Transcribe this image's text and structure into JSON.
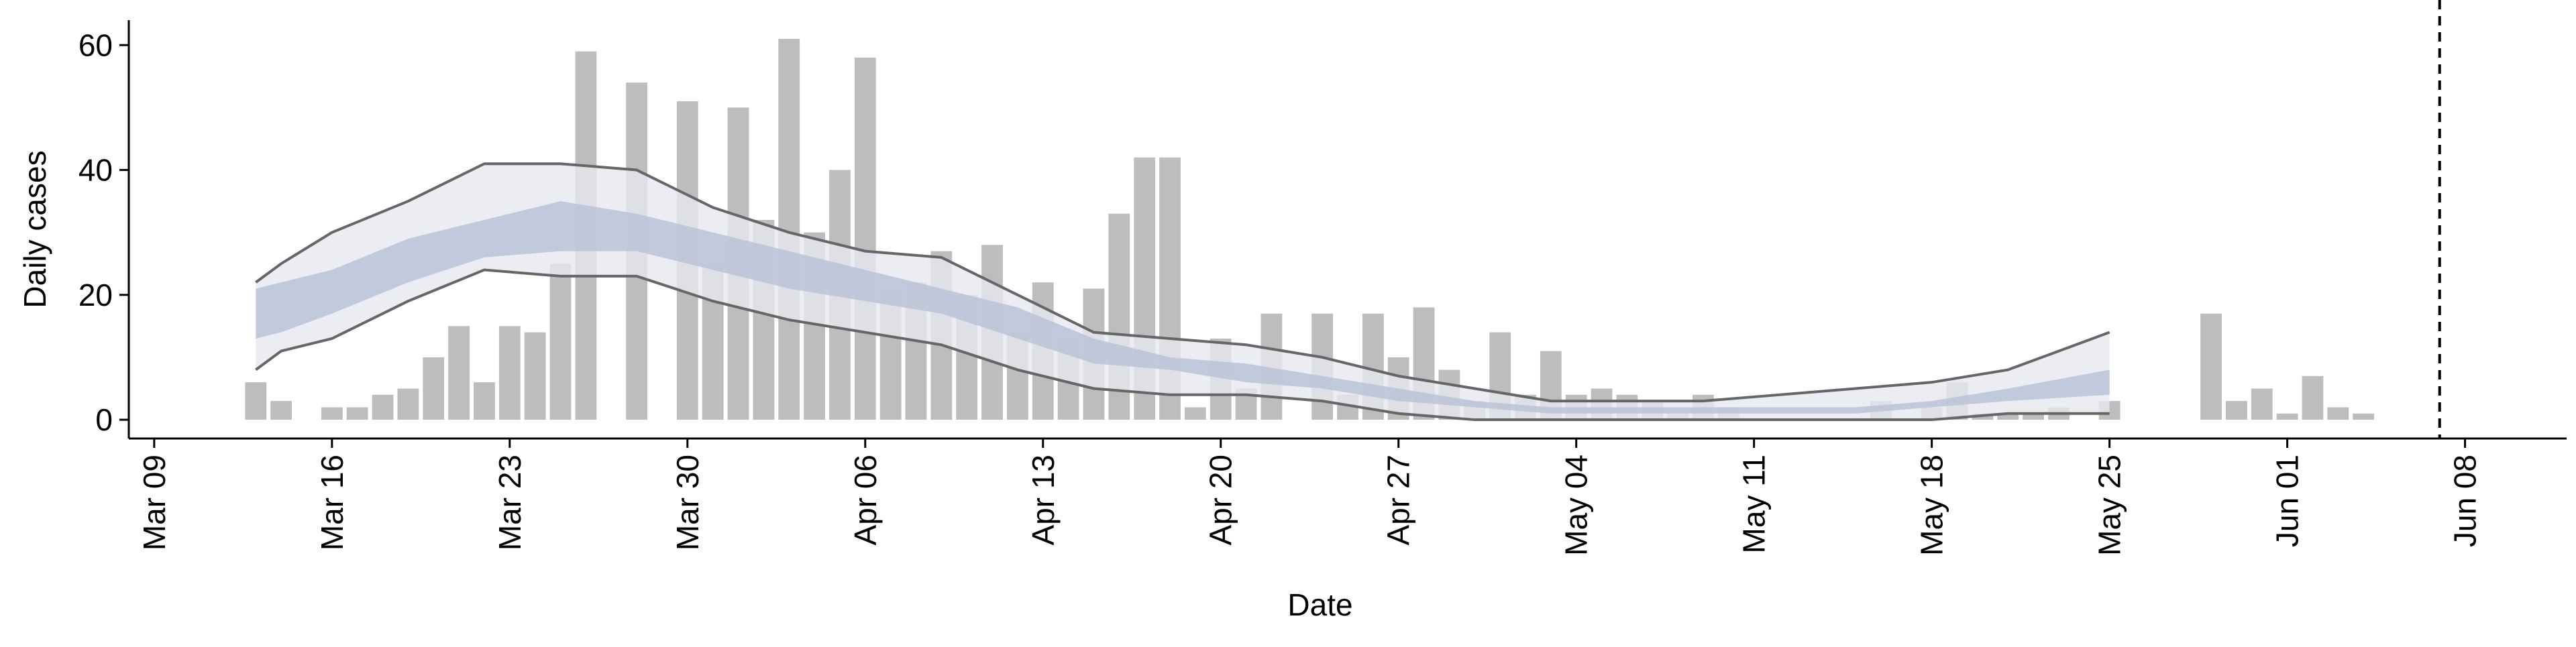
{
  "chart_data": {
    "type": "bar",
    "xlabel": "Date",
    "ylabel": "Daily cases",
    "color": "#bdbdbd",
    "x": [
      "Mar 13",
      "Mar 14",
      "Mar 16",
      "Mar 17",
      "Mar 18",
      "Mar 19",
      "Mar 20",
      "Mar 21",
      "Mar 22",
      "Mar 23",
      "Mar 24",
      "Mar 25",
      "Mar 26",
      "Mar 28",
      "Mar 30",
      "Mar 31",
      "Apr 01",
      "Apr 02",
      "Apr 03",
      "Apr 04",
      "Apr 05",
      "Apr 06",
      "Apr 07",
      "Apr 08",
      "Apr 09",
      "Apr 10",
      "Apr 11",
      "Apr 12",
      "Apr 13",
      "Apr 14",
      "Apr 15",
      "Apr 16",
      "Apr 17",
      "Apr 18",
      "Apr 19",
      "Apr 20",
      "Apr 21",
      "Apr 22",
      "Apr 24",
      "Apr 25",
      "Apr 26",
      "Apr 27",
      "Apr 28",
      "Apr 29",
      "Apr 30",
      "May 01",
      "May 02",
      "May 03",
      "May 04",
      "May 05",
      "May 06",
      "May 07",
      "May 08",
      "May 09",
      "May 10",
      "May 16",
      "May 18",
      "May 19",
      "May 20",
      "May 21",
      "May 22",
      "May 23",
      "May 25",
      "May 29",
      "May 30",
      "May 31",
      "Jun 01",
      "Jun 02",
      "Jun 03",
      "Jun 04"
    ],
    "values": [
      6,
      3,
      2,
      2,
      4,
      5,
      10,
      15,
      6,
      15,
      14,
      25,
      59,
      54,
      51,
      25,
      50,
      32,
      61,
      30,
      40,
      58,
      21,
      22,
      27,
      20,
      28,
      14,
      22,
      13,
      21,
      33,
      42,
      42,
      2,
      13,
      5,
      17,
      17,
      4,
      17,
      10,
      18,
      8,
      3,
      14,
      4,
      11,
      4,
      5,
      4,
      3,
      1,
      4,
      2,
      3,
      2,
      6,
      1,
      1,
      1,
      2,
      3,
      17,
      3,
      5,
      1,
      7,
      2,
      1
    ],
    "model": {
      "x": [
        "Mar 13",
        "Mar 14",
        "Mar 16",
        "Mar 19",
        "Mar 22",
        "Mar 25",
        "Mar 28",
        "Mar 31",
        "Apr 03",
        "Apr 06",
        "Apr 09",
        "Apr 12",
        "Apr 15",
        "Apr 18",
        "Apr 21",
        "Apr 24",
        "Apr 27",
        "Apr 30",
        "May 03",
        "May 06",
        "May 09",
        "May 12",
        "May 15",
        "May 18",
        "May 21",
        "May 25"
      ],
      "outer_upper": [
        22,
        25,
        30,
        35,
        41,
        41,
        40,
        34,
        30,
        27,
        26,
        20,
        14,
        13,
        12,
        10,
        7,
        5,
        3,
        3,
        3,
        4,
        5,
        6,
        8,
        14
      ],
      "outer_lower": [
        8,
        11,
        13,
        19,
        24,
        23,
        23,
        19,
        16,
        14,
        12,
        8,
        5,
        4,
        4,
        3,
        1,
        0,
        0,
        0,
        0,
        0,
        0,
        0,
        1,
        1
      ],
      "inner_upper": [
        21,
        22,
        24,
        29,
        32,
        35,
        33,
        30,
        27,
        24,
        21,
        18,
        13,
        10,
        9,
        7,
        5,
        3,
        2,
        2,
        2,
        2,
        2,
        3,
        5,
        8
      ],
      "inner_lower": [
        13,
        14,
        17,
        22,
        26,
        27,
        27,
        24,
        21,
        19,
        17,
        13,
        9,
        8,
        6,
        5,
        3,
        2,
        1,
        1,
        1,
        1,
        1,
        2,
        3,
        4
      ],
      "outer_color": "#e6e8f0",
      "inner_color": "#b7c0d6",
      "line_color": "#666666"
    },
    "vline": "Jun 07",
    "xlim": [
      "Mar 08",
      "Jun 12"
    ],
    "xticks": [
      "Mar 09",
      "Mar 16",
      "Mar 23",
      "Mar 30",
      "Apr 06",
      "Apr 13",
      "Apr 20",
      "Apr 27",
      "May 04",
      "May 11",
      "May 18",
      "May 25",
      "Jun 01",
      "Jun 08"
    ],
    "ylim": [
      -3,
      64
    ],
    "yticks": [
      0,
      20,
      40,
      60
    ]
  }
}
